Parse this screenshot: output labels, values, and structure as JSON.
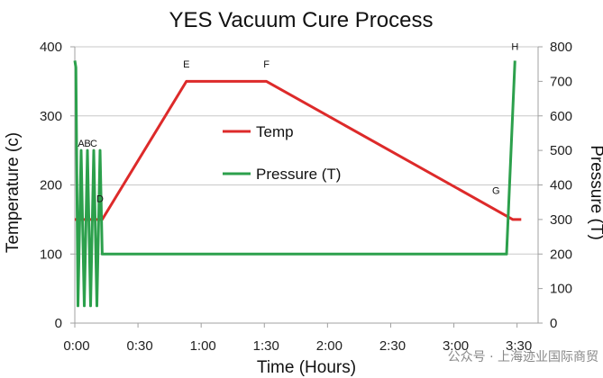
{
  "chart_data": {
    "type": "line",
    "title": "YES Vacuum Cure Process",
    "xlabel": "Time (Hours)",
    "ylabel": "Temperature (c)",
    "y2label": "Pressure (T)",
    "xlim": [
      0,
      220
    ],
    "ylim": [
      0,
      400
    ],
    "y2lim": [
      0,
      800
    ],
    "x_ticks": [
      {
        "v": 0,
        "label": "0:00"
      },
      {
        "v": 30,
        "label": "0:30"
      },
      {
        "v": 60,
        "label": "1:00"
      },
      {
        "v": 90,
        "label": "1:30"
      },
      {
        "v": 120,
        "label": "2:00"
      },
      {
        "v": 150,
        "label": "2:30"
      },
      {
        "v": 180,
        "label": "3:00"
      },
      {
        "v": 210,
        "label": "3:30"
      }
    ],
    "y_ticks": [
      0,
      100,
      200,
      300,
      400
    ],
    "y2_ticks": [
      0,
      100,
      200,
      300,
      400,
      500,
      600,
      700,
      800
    ],
    "grid": "horizontal",
    "series": [
      {
        "name": "Temp",
        "axis": "left",
        "color": "#dd2a2a",
        "x": [
          0,
          13,
          53,
          91,
          208,
          212
        ],
        "y": [
          150,
          150,
          350,
          350,
          150,
          150
        ]
      },
      {
        "name": "Pressure (T)",
        "axis": "right",
        "color": "#2ca04c",
        "x": [
          0,
          0.5,
          1.5,
          3,
          4.5,
          6,
          7.5,
          9,
          10.5,
          12,
          13,
          205,
          209
        ],
        "y": [
          760,
          740,
          50,
          500,
          50,
          500,
          50,
          500,
          50,
          500,
          200,
          200,
          760
        ]
      }
    ],
    "legend": {
      "placement": "center"
    },
    "annotations": [
      {
        "label": "A",
        "x": 3,
        "y": 500,
        "axis": "right"
      },
      {
        "label": "B",
        "x": 6,
        "y": 500,
        "axis": "right"
      },
      {
        "label": "C",
        "x": 9,
        "y": 500,
        "axis": "right"
      },
      {
        "label": "D",
        "x": 12,
        "y": 170,
        "axis": "left"
      },
      {
        "label": "E",
        "x": 53,
        "y": 365,
        "axis": "left"
      },
      {
        "label": "F",
        "x": 91,
        "y": 365,
        "axis": "left"
      },
      {
        "label": "G",
        "x": 200,
        "y": 182,
        "axis": "left"
      },
      {
        "label": "H",
        "x": 209,
        "y": 780,
        "axis": "right"
      }
    ]
  },
  "watermark": "公众号 · 上海迹业国际商贸",
  "colors": {
    "grid": "#c8c8c8",
    "axis": "#a0a0a0"
  }
}
